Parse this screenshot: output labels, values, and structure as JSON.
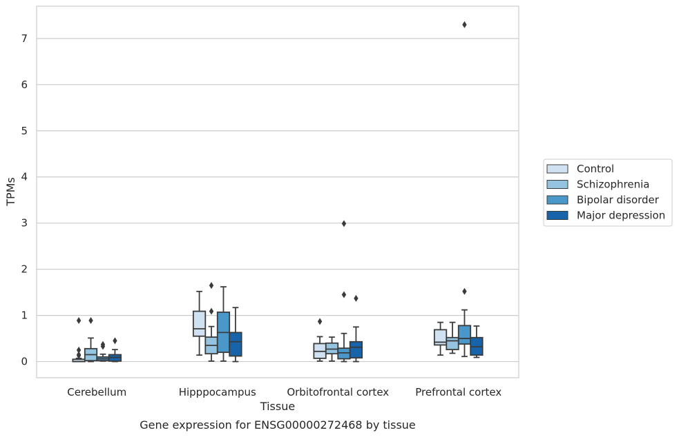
{
  "chart_data": {
    "type": "box",
    "title": "",
    "caption": "Gene expression for ENSG00000272468 by tissue",
    "xlabel": "Tissue",
    "ylabel": "TPMs",
    "ylim": [
      -0.35,
      7.7
    ],
    "yticks": [
      0,
      1,
      2,
      3,
      4,
      5,
      6,
      7
    ],
    "grid": "horizontal",
    "legend_position": "right",
    "categories": [
      "Cerebellum",
      "Hipppocampus",
      "Orbitofrontal cortex",
      "Prefrontal cortex"
    ],
    "series": [
      {
        "name": "Control",
        "color": "#d0e1f2",
        "boxes": [
          {
            "min": 0.0,
            "q1": 0.0,
            "median": 0.0,
            "q3": 0.05,
            "max": 0.07,
            "outliers": [
              0.13,
              0.15,
              0.25,
              0.89
            ]
          },
          {
            "min": 0.14,
            "q1": 0.55,
            "median": 0.71,
            "q3": 1.09,
            "max": 1.52,
            "outliers": []
          },
          {
            "min": 0.01,
            "q1": 0.07,
            "median": 0.22,
            "q3": 0.39,
            "max": 0.54,
            "outliers": [
              0.87
            ]
          },
          {
            "min": 0.14,
            "q1": 0.36,
            "median": 0.42,
            "q3": 0.69,
            "max": 0.85,
            "outliers": []
          }
        ]
      },
      {
        "name": "Schizophrenia",
        "color": "#94c4df",
        "boxes": [
          {
            "min": 0.0,
            "q1": 0.02,
            "median": 0.15,
            "q3": 0.28,
            "max": 0.51,
            "outliers": [
              0.89
            ]
          },
          {
            "min": 0.01,
            "q1": 0.17,
            "median": 0.35,
            "q3": 0.53,
            "max": 0.76,
            "outliers": [
              1.09,
              1.65
            ]
          },
          {
            "min": 0.01,
            "q1": 0.17,
            "median": 0.27,
            "q3": 0.4,
            "max": 0.53,
            "outliers": []
          },
          {
            "min": 0.18,
            "q1": 0.26,
            "median": 0.45,
            "q3": 0.52,
            "max": 0.85,
            "outliers": []
          }
        ]
      },
      {
        "name": "Bipolar disorder",
        "color": "#4a98c9",
        "boxes": [
          {
            "min": 0.01,
            "q1": 0.02,
            "median": 0.06,
            "q3": 0.1,
            "max": 0.16,
            "outliers": [
              0.33,
              0.37
            ]
          },
          {
            "min": 0.01,
            "q1": 0.2,
            "median": 0.63,
            "q3": 1.07,
            "max": 1.62,
            "outliers": []
          },
          {
            "min": 0.0,
            "q1": 0.06,
            "median": 0.19,
            "q3": 0.29,
            "max": 0.61,
            "outliers": [
              1.45,
              2.99
            ]
          },
          {
            "min": 0.11,
            "q1": 0.38,
            "median": 0.5,
            "q3": 0.78,
            "max": 1.12,
            "outliers": [
              1.52,
              7.3
            ]
          }
        ]
      },
      {
        "name": "Major depression",
        "color": "#1764ab",
        "boxes": [
          {
            "min": 0.0,
            "q1": 0.01,
            "median": 0.09,
            "q3": 0.15,
            "max": 0.26,
            "outliers": [
              0.45
            ]
          },
          {
            "min": 0.0,
            "q1": 0.12,
            "median": 0.43,
            "q3": 0.63,
            "max": 1.17,
            "outliers": []
          },
          {
            "min": 0.0,
            "q1": 0.08,
            "median": 0.31,
            "q3": 0.43,
            "max": 0.75,
            "outliers": [
              1.37
            ]
          },
          {
            "min": 0.09,
            "q1": 0.14,
            "median": 0.32,
            "q3": 0.52,
            "max": 0.77,
            "outliers": []
          }
        ]
      }
    ]
  }
}
